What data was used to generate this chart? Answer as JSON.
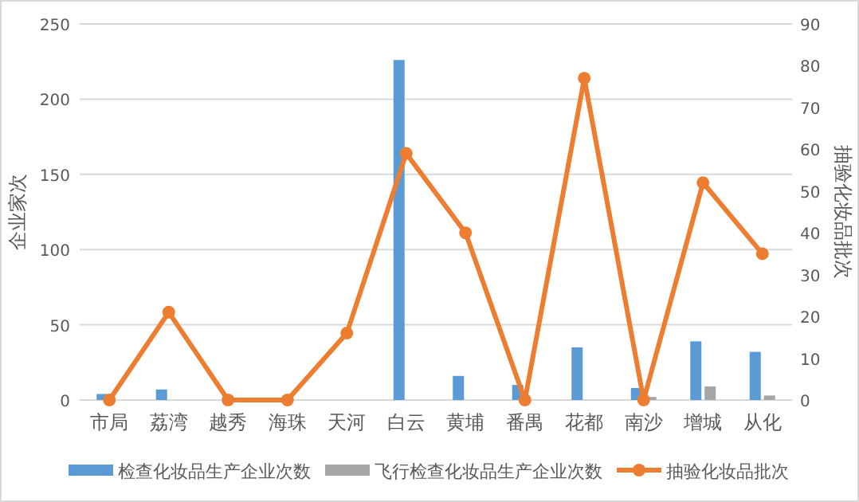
{
  "chart_data": {
    "type": "bar",
    "ylabel": "企业家次",
    "y2label": "抽验化妆品批次",
    "categories": [
      "市局",
      "荔湾",
      "越秀",
      "海珠",
      "天河",
      "白云",
      "黄埔",
      "番禺",
      "花都",
      "南沙",
      "增城",
      "从化"
    ],
    "series": [
      {
        "name": "检查化妆品生产企业次数",
        "color": "#5b9bd5",
        "values": [
          4,
          7,
          0,
          0,
          0,
          226,
          16,
          10,
          35,
          8,
          39,
          32
        ]
      },
      {
        "name": "飞行检查化妆品生产企业次数",
        "color": "#a5a5a5",
        "values": [
          0,
          0,
          0,
          0,
          0,
          0,
          0,
          0,
          0,
          2,
          9,
          3
        ]
      },
      {
        "name": "抽验化妆品批次",
        "type": "line",
        "axis": "y2",
        "color": "#ed7d31",
        "marker": "circle",
        "values": [
          0,
          21,
          0,
          0,
          16,
          59,
          40,
          0,
          77,
          0,
          52,
          35
        ]
      }
    ],
    "ylim": [
      0,
      250
    ],
    "yticks": [
      0,
      50,
      100,
      150,
      200,
      250
    ],
    "y2lim": [
      0,
      90
    ],
    "y2ticks": [
      0,
      10,
      20,
      30,
      40,
      50,
      60,
      70,
      80,
      90
    ],
    "grid": "y",
    "legend": "bottom"
  }
}
